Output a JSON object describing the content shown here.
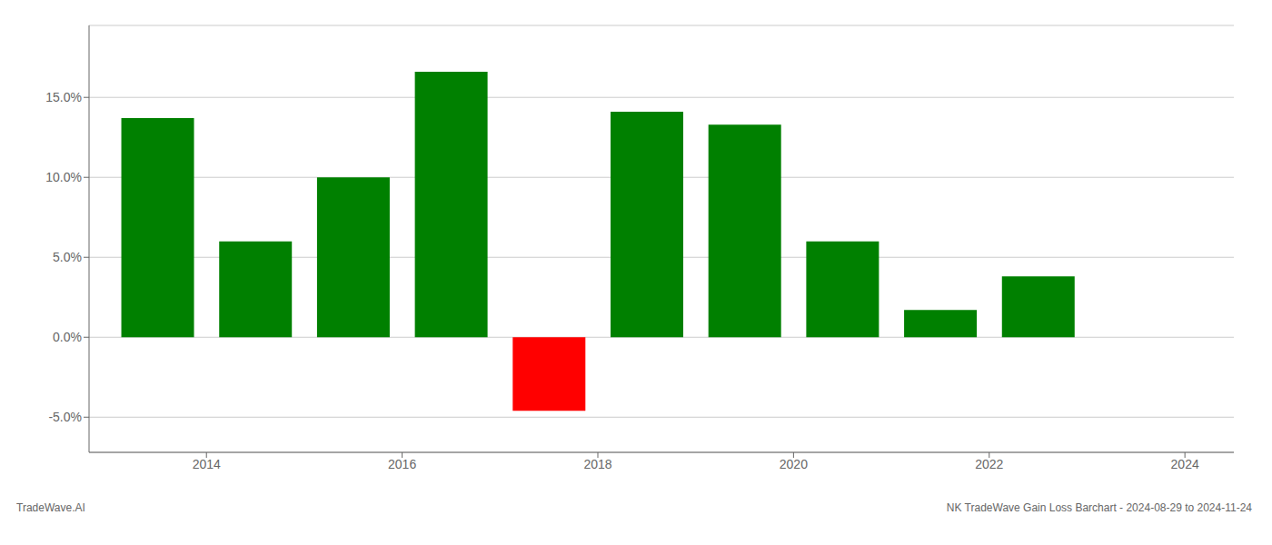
{
  "chart_data": {
    "type": "bar",
    "title": "NK TradeWave Gain Loss Barchart - 2024-08-29 to 2024-11-24",
    "annotations": [
      "TradeWave.AI"
    ],
    "x": [
      2013.5,
      2014.5,
      2015.5,
      2016.5,
      2017.5,
      2018.5,
      2019.5,
      2020.5,
      2021.5,
      2022.5
    ],
    "values": [
      0.137,
      0.06,
      0.1,
      0.166,
      -0.046,
      0.141,
      0.133,
      0.06,
      0.017,
      0.038
    ],
    "colors": [
      "#008000",
      "#008000",
      "#008000",
      "#008000",
      "#ff0000",
      "#008000",
      "#008000",
      "#008000",
      "#008000",
      "#008000"
    ],
    "xlim": [
      2012.8,
      2024.5
    ],
    "xticks": [
      2014,
      2016,
      2018,
      2020,
      2022,
      2024
    ],
    "ylim": [
      -0.072,
      0.195
    ],
    "yticks": [
      {
        "value": -0.05,
        "label": "-5.0%"
      },
      {
        "value": 0.0,
        "label": "0.0%"
      },
      {
        "value": 0.05,
        "label": "5.0%"
      },
      {
        "value": 0.1,
        "label": "10.0%"
      },
      {
        "value": 0.15,
        "label": "15.0%"
      }
    ],
    "grid": "y"
  }
}
